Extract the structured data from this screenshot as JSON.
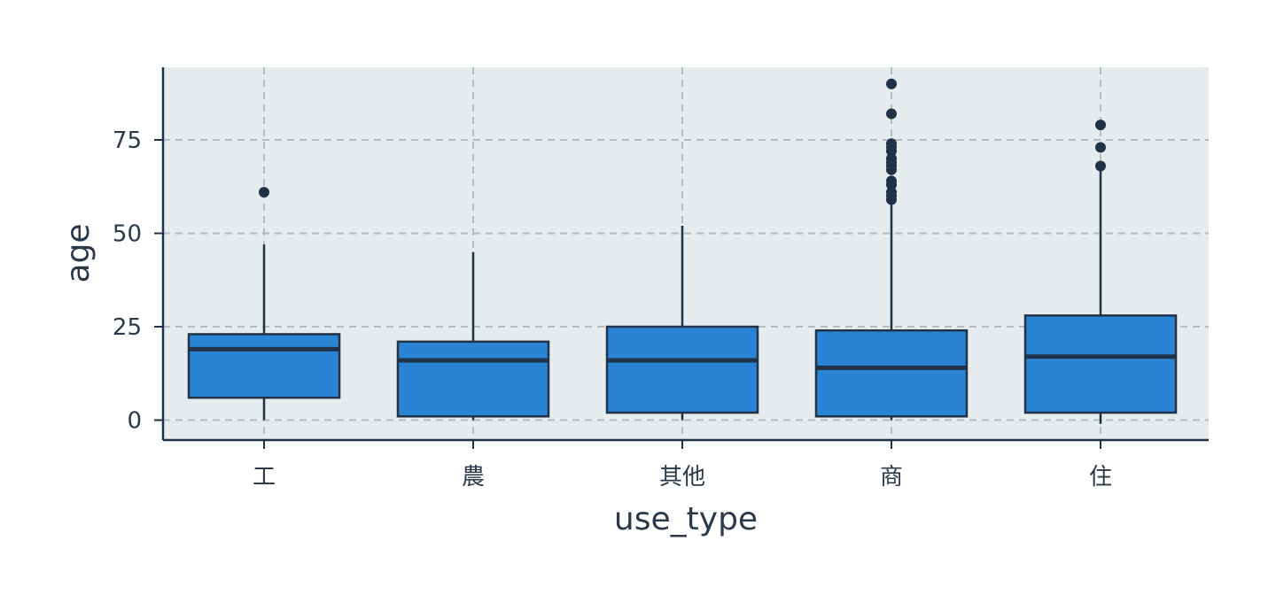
{
  "chart_data": {
    "type": "boxplot",
    "xlabel": "use_type",
    "ylabel": "age",
    "categories": [
      "工",
      "農",
      "其他",
      "商",
      "住"
    ],
    "yticks": [
      0,
      25,
      50,
      75
    ],
    "ylim": [
      -5,
      95
    ],
    "grid": true,
    "boxes": [
      {
        "category": "工",
        "whisker_low": 0,
        "q1": 6,
        "median": 19,
        "q3": 23,
        "whisker_high": 47,
        "outliers": [
          61
        ]
      },
      {
        "category": "農",
        "whisker_low": 0,
        "q1": 1,
        "median": 16,
        "q3": 21,
        "whisker_high": 45,
        "outliers": []
      },
      {
        "category": "其他",
        "whisker_low": 0,
        "q1": 2,
        "median": 16,
        "q3": 25,
        "whisker_high": 52,
        "outliers": []
      },
      {
        "category": "商",
        "whisker_low": 0,
        "q1": 1,
        "median": 14,
        "q3": 24,
        "whisker_high": 58,
        "outliers": [
          59,
          60,
          61,
          63,
          64,
          67,
          68,
          69,
          70,
          72,
          73,
          74,
          82,
          90
        ]
      },
      {
        "category": "住",
        "whisker_low": -1,
        "q1": 2,
        "median": 17,
        "q3": 28,
        "whisker_high": 68,
        "outliers": [
          68,
          73,
          79
        ]
      }
    ],
    "colors": {
      "box_fill": "#2b84d3",
      "box_edge": "#203247",
      "panel_bg": "#e6eced",
      "grid": "#b8bcbe",
      "axis": "#203247"
    }
  }
}
